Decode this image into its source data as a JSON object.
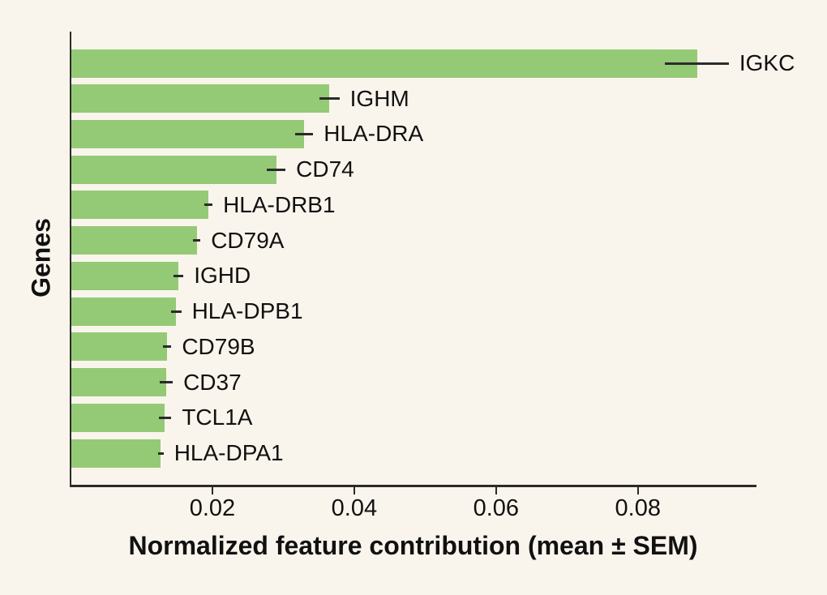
{
  "figure": {
    "background_color": "#faf5ec",
    "bar_color": "#94ca76",
    "axis_color": "#2b2b2b",
    "text_color": "#111111"
  },
  "chart_data": {
    "type": "bar",
    "orientation": "horizontal",
    "xlabel": "Normalized feature contribution (mean ± SEM)",
    "ylabel": "Genes",
    "categories": [
      "IGKC",
      "IGHM",
      "HLA-DRA",
      "CD74",
      "HLA-DRB1",
      "CD79A",
      "IGHD",
      "HLA-DPB1",
      "CD79B",
      "CD37",
      "TCL1A",
      "HLA-DPA1"
    ],
    "values": [
      0.0882,
      0.0364,
      0.0328,
      0.0289,
      0.0193,
      0.0177,
      0.0151,
      0.0148,
      0.0135,
      0.0134,
      0.0132,
      0.0126
    ],
    "errors": [
      0.0045,
      0.0014,
      0.0013,
      0.0013,
      0.0006,
      0.0005,
      0.0007,
      0.0007,
      0.0006,
      0.0009,
      0.0009,
      0.0004
    ],
    "error_style": "horizontal line through bar end, no caps",
    "x_ticks": [
      0.02,
      0.04,
      0.06,
      0.08
    ],
    "x_tick_labels": [
      "0.02",
      "0.04",
      "0.06",
      "0.08"
    ],
    "xlim": [
      0,
      0.0966
    ],
    "grid": false,
    "legend_position": "none",
    "bar_label_position": "right of error bar"
  }
}
